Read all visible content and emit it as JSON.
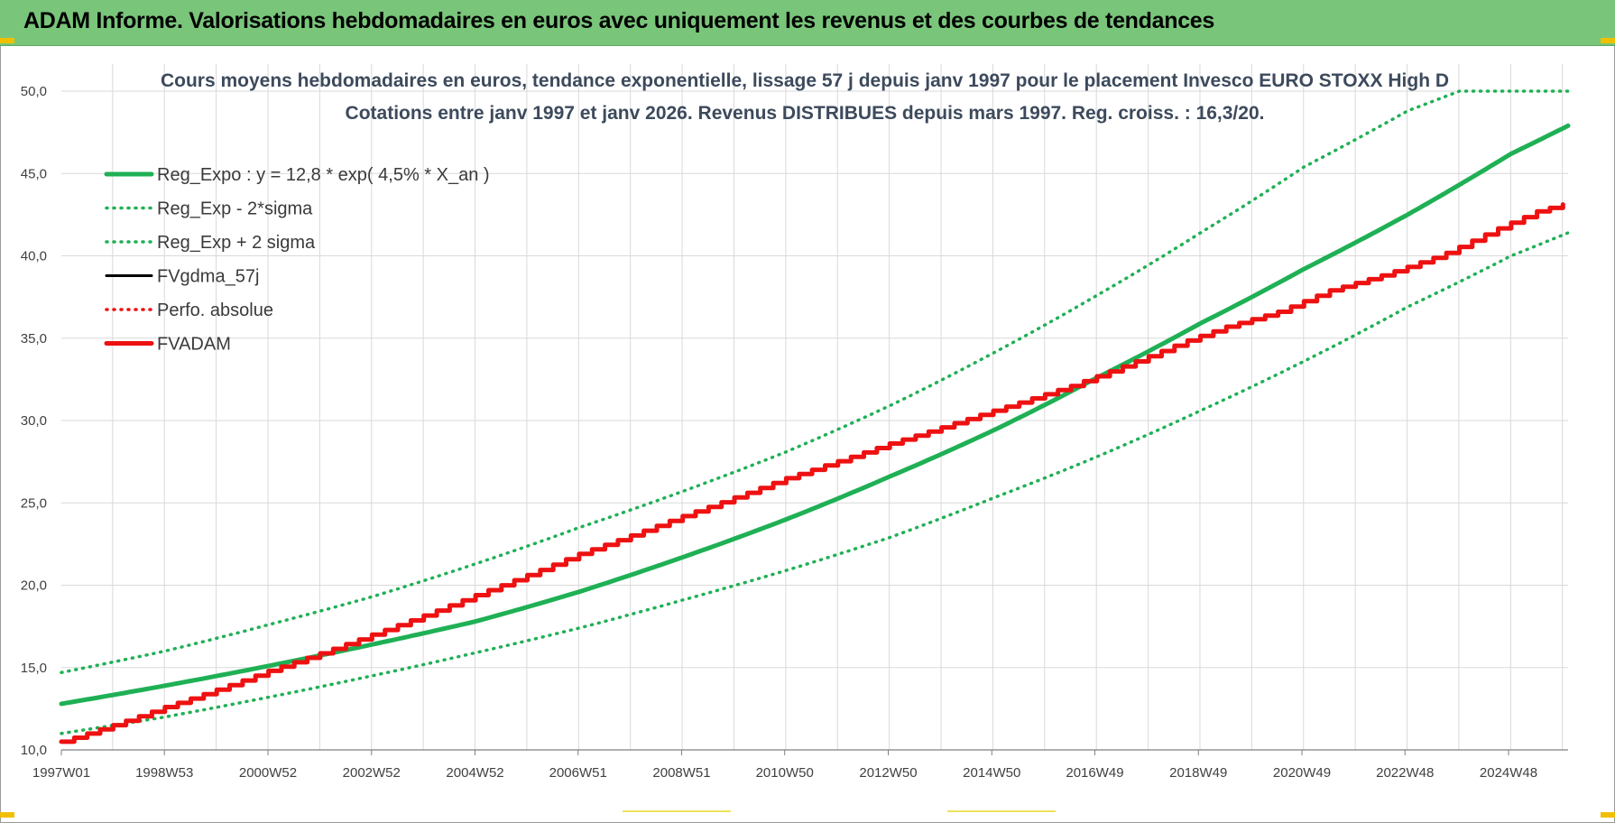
{
  "header": {
    "title": "ADAM Informe. Valorisations hebdomadaires en euros avec uniquement les revenus et des courbes de tendances"
  },
  "colors": {
    "header_bg": "#79c57a",
    "reg_expo": "#1fb055",
    "fv_gdma": "#000000",
    "fv_adam": "#ee1111",
    "perfo": "#ee1111",
    "grid": "#d9d9d9"
  },
  "chart_data": {
    "type": "line",
    "title": "Cours moyens hebdomadaires en euros, tendance exponentielle, lissage 57 j depuis janv 1997 pour le placement Invesco EURO STOXX High D",
    "subtitle": "Cotations entre janv 1997 et janv 2026. Revenus DISTRIBUES depuis mars 1997. Reg. croiss. : 16,3/20.",
    "xlabel": "",
    "ylabel": "",
    "ylim": [
      10,
      50
    ],
    "y_ticks": [
      "10,0",
      "15,0",
      "20,0",
      "25,0",
      "30,0",
      "35,0",
      "40,0",
      "45,0",
      "50,0"
    ],
    "x_tick_labels": [
      "1997W01",
      "1998W53",
      "2000W52",
      "2002W52",
      "2004W52",
      "2006W51",
      "2008W51",
      "2010W50",
      "2012W50",
      "2014W50",
      "2016W49",
      "2018W49",
      "2020W49",
      "2022W48",
      "2024W48"
    ],
    "x_tick_years": [
      1997.0,
      1998.99,
      2000.99,
      2002.99,
      2004.99,
      2006.98,
      2008.98,
      2010.97,
      2012.97,
      2014.97,
      2016.96,
      2018.96,
      2020.96,
      2022.95,
      2024.95
    ],
    "xlim": [
      1997.0,
      2026.1
    ],
    "grid": true,
    "legend_position": "top-left",
    "legend": [
      {
        "label": "Reg_Expo : y = 12,8 * exp( 4,5% *  X_an )",
        "style": "solid-thick",
        "color": "#1fb055"
      },
      {
        "label": "Reg_Exp - 2*sigma",
        "style": "dotted",
        "color": "#1fb055"
      },
      {
        "label": "Reg_Exp + 2 sigma",
        "style": "dotted",
        "color": "#1fb055"
      },
      {
        "label": "FVgdma_57j",
        "style": "solid",
        "color": "#000000"
      },
      {
        "label": "Perfo. absolue",
        "style": "dotted",
        "color": "#ee1111"
      },
      {
        "label": "FVADAM",
        "style": "solid-thick",
        "color": "#ee1111"
      }
    ],
    "series": [
      {
        "name": "Reg_Expo : y = 12,8 * exp( 4,5% *  X_an )",
        "x": [
          1997,
          1999,
          2001,
          2003,
          2005,
          2007,
          2009,
          2011,
          2013,
          2015,
          2017,
          2019,
          2021,
          2023,
          2025,
          2026.1
        ],
        "y": [
          12.8,
          13.9,
          15.1,
          16.4,
          17.8,
          19.6,
          21.7,
          24.0,
          26.6,
          29.4,
          32.6,
          35.9,
          39.2,
          42.5,
          46.2,
          47.9
        ]
      },
      {
        "name": "Reg_Exp - 2*sigma",
        "x": [
          1997,
          1999,
          2001,
          2003,
          2005,
          2007,
          2009,
          2011,
          2013,
          2015,
          2017,
          2019,
          2021,
          2023,
          2025,
          2026.1
        ],
        "y": [
          11.0,
          12.0,
          13.2,
          14.5,
          15.9,
          17.4,
          19.1,
          20.9,
          22.9,
          25.3,
          27.8,
          30.6,
          33.6,
          36.9,
          40.0,
          41.4
        ]
      },
      {
        "name": "Reg_Exp + 2 sigma",
        "x": [
          1997,
          1999,
          2001,
          2003,
          2005,
          2007,
          2009,
          2011,
          2013,
          2015,
          2017,
          2019,
          2021,
          2023,
          2024.0,
          2026.1
        ],
        "y": [
          14.7,
          16.0,
          17.6,
          19.3,
          21.3,
          23.5,
          25.7,
          28.1,
          30.9,
          34.1,
          37.6,
          41.4,
          45.4,
          48.8,
          50.0,
          50.0
        ]
      },
      {
        "name": "FVgdma_57j",
        "x": [
          1997,
          1999,
          2001,
          2003,
          2005,
          2007,
          2009,
          2011,
          2013,
          2015,
          2016.5,
          2017.6,
          2018.7,
          2019.5,
          2020.5,
          2021.5,
          2022.6,
          2023.7,
          2024.7,
          2025.5,
          2026.1
        ],
        "y": [
          10.5,
          12.6,
          14.8,
          17.0,
          19.4,
          21.9,
          24.2,
          26.5,
          28.6,
          30.6,
          32.1,
          33.4,
          34.8,
          35.7,
          36.6,
          37.9,
          38.9,
          40.1,
          41.6,
          42.7,
          43.2
        ]
      },
      {
        "name": "FVADAM",
        "x": [
          1997,
          1999,
          2001,
          2003,
          2005,
          2007,
          2009,
          2011,
          2013,
          2015,
          2016.5,
          2017.6,
          2018.7,
          2019.5,
          2020.5,
          2021.5,
          2022.6,
          2023.7,
          2024.7,
          2025.5,
          2026.1
        ],
        "y": [
          10.5,
          12.6,
          14.8,
          17.0,
          19.4,
          21.9,
          24.2,
          26.5,
          28.6,
          30.6,
          32.1,
          33.4,
          34.8,
          35.7,
          36.6,
          37.9,
          38.9,
          40.1,
          41.6,
          42.7,
          43.2
        ]
      }
    ]
  }
}
